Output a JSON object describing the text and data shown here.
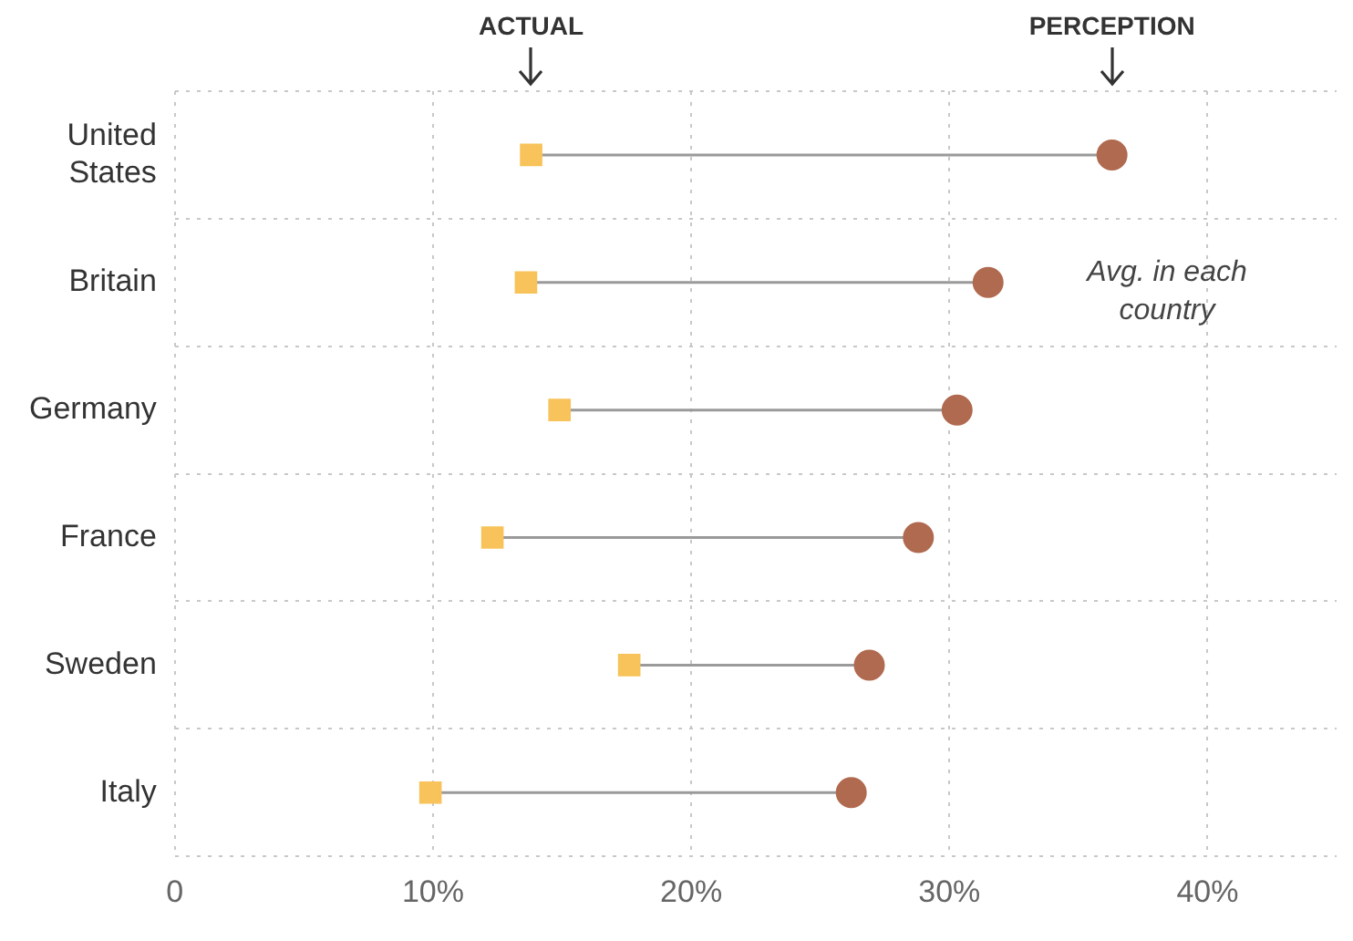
{
  "chart_data": {
    "type": "scatter",
    "orientation": "horizontal",
    "categories": [
      "United States",
      "Britain",
      "Germany",
      "France",
      "Sweden",
      "Italy"
    ],
    "series": [
      {
        "name": "ACTUAL",
        "color": "#f7c35a",
        "marker": "square",
        "values": [
          13.8,
          13.6,
          14.9,
          12.3,
          17.6,
          9.9
        ]
      },
      {
        "name": "PERCEPTION",
        "color": "#b06a4f",
        "marker": "circle",
        "values": [
          36.3,
          31.5,
          30.3,
          28.8,
          26.9,
          26.2
        ]
      }
    ],
    "xlim": [
      0,
      45
    ],
    "xticks": [
      0,
      {
        "value": 10,
        "label": "10%"
      },
      {
        "value": 20,
        "label": "20%"
      },
      {
        "value": 30,
        "label": "30%"
      },
      {
        "value": 40,
        "label": "40%"
      }
    ],
    "grid": true,
    "annotations": [
      "Avg. in each country"
    ]
  }
}
